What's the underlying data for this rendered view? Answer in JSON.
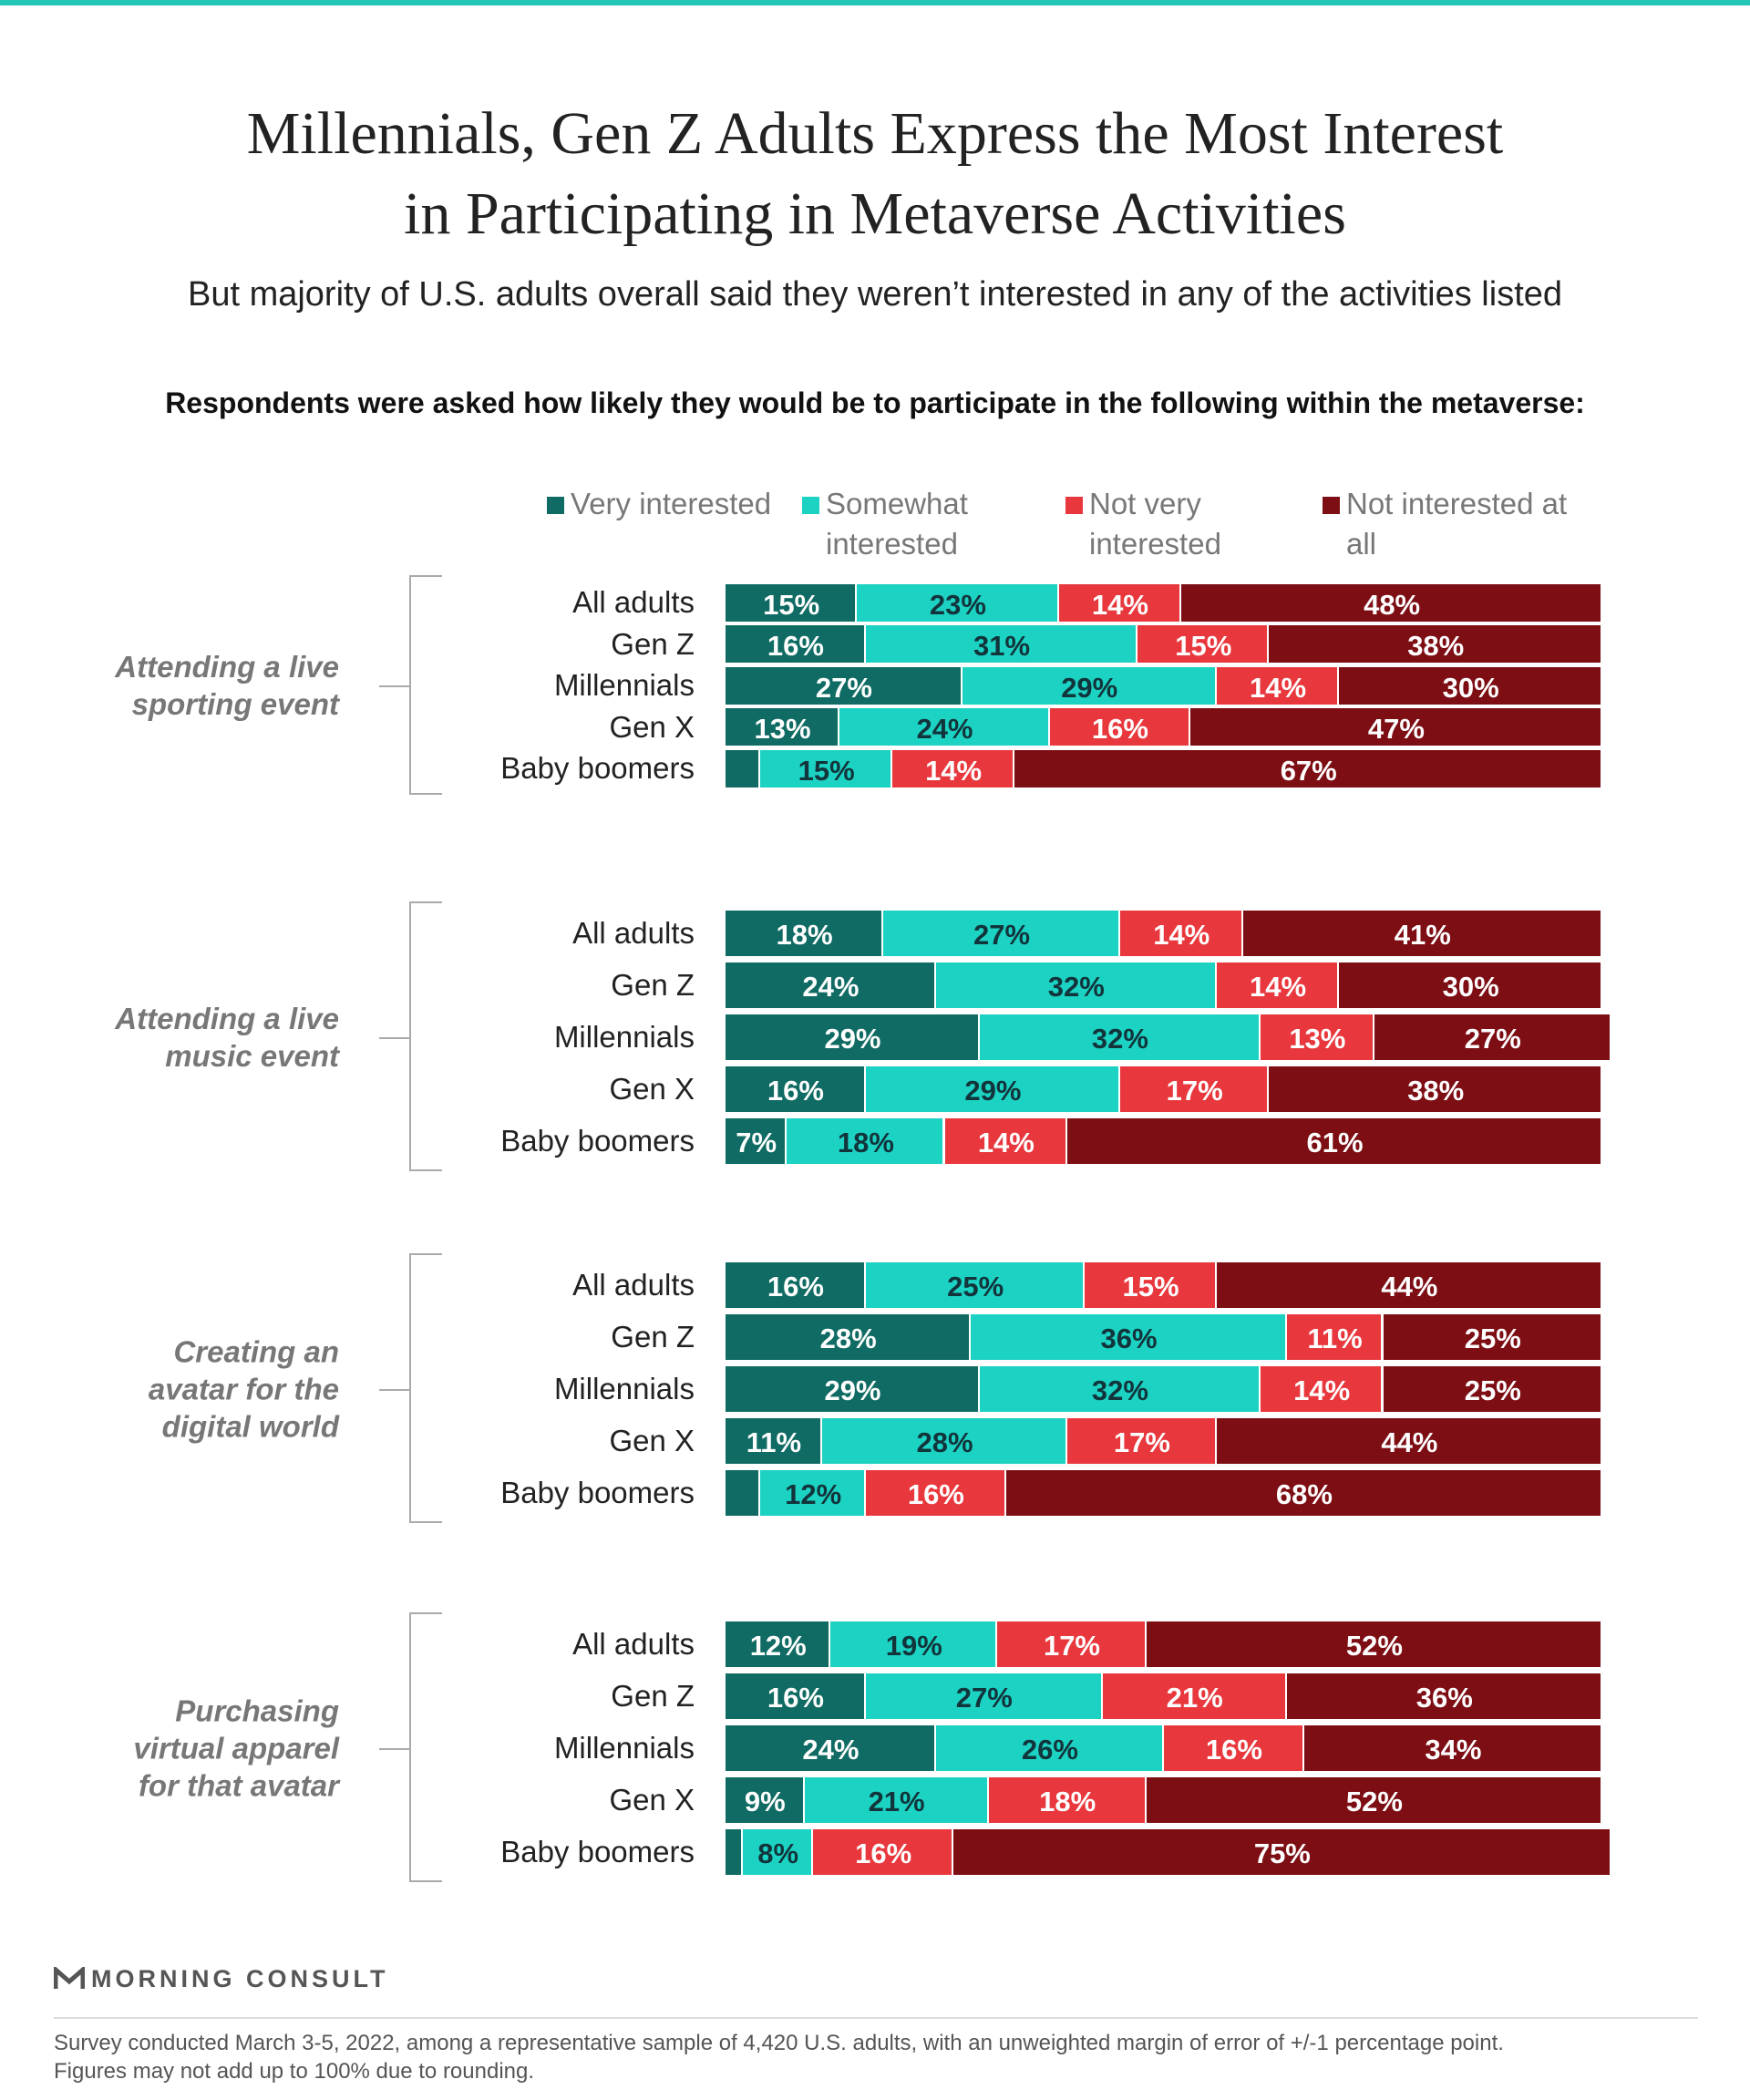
{
  "chart_data": {
    "type": "bar",
    "orientation": "horizontal",
    "stacked": true,
    "title": "Millennials, Gen Z Adults Express the Most Interest in Participating in Metaverse Activities",
    "subtitle": "But majority of U.S. adults overall said they weren’t interested in any of the activities listed",
    "question": "Respondents were asked how likely they would be to participate in the following within the metaverse:",
    "xlim": [
      0,
      100
    ],
    "categories": [
      "All adults",
      "Gen Z",
      "Millennials",
      "Gen X",
      "Baby boomers"
    ],
    "series": [
      {
        "name": "Very interested",
        "color": "#0f6b63"
      },
      {
        "name": "Somewhat interested",
        "color": "#1cd2c3"
      },
      {
        "name": "Not very interested",
        "color": "#e8383d"
      },
      {
        "name": "Not interested at all",
        "color": "#7d0e14"
      }
    ],
    "panels": [
      {
        "label": "Attending a live\nsporting event",
        "series": [
          {
            "values": [
              15,
              16,
              27,
              13,
              4
            ],
            "value_labels": [
              "15%",
              "16%",
              "27%",
              "13%",
              null
            ]
          },
          {
            "values": [
              23,
              31,
              29,
              24,
              15
            ],
            "value_labels": [
              "23%",
              "31%",
              "29%",
              "24%",
              "15%"
            ]
          },
          {
            "values": [
              14,
              15,
              14,
              16,
              14
            ],
            "value_labels": [
              "14%",
              "15%",
              "14%",
              "16%",
              "14%"
            ]
          },
          {
            "values": [
              48,
              38,
              30,
              47,
              67
            ],
            "value_labels": [
              "48%",
              "38%",
              "30%",
              "47%",
              "67%"
            ]
          }
        ]
      },
      {
        "label": "Attending a live\nmusic event",
        "series": [
          {
            "values": [
              18,
              24,
              29,
              16,
              7
            ],
            "value_labels": [
              "18%",
              "24%",
              "29%",
              "16%",
              "7%"
            ]
          },
          {
            "values": [
              27,
              32,
              32,
              29,
              18
            ],
            "value_labels": [
              "27%",
              "32%",
              "32%",
              "29%",
              "18%"
            ]
          },
          {
            "values": [
              14,
              14,
              13,
              17,
              14
            ],
            "value_labels": [
              "14%",
              "14%",
              "13%",
              "17%",
              "14%"
            ]
          },
          {
            "values": [
              41,
              30,
              27,
              38,
              61
            ],
            "value_labels": [
              "41%",
              "30%",
              "27%",
              "38%",
              "61%"
            ]
          }
        ]
      },
      {
        "label": "Creating an\navatar for the\ndigital world",
        "series": [
          {
            "values": [
              16,
              28,
              29,
              11,
              4
            ],
            "value_labels": [
              "16%",
              "28%",
              "29%",
              "11%",
              null
            ]
          },
          {
            "values": [
              25,
              36,
              32,
              28,
              12
            ],
            "value_labels": [
              "25%",
              "36%",
              "32%",
              "28%",
              "12%"
            ]
          },
          {
            "values": [
              15,
              11,
              14,
              17,
              16
            ],
            "value_labels": [
              "15%",
              "11%",
              "14%",
              "17%",
              "16%"
            ]
          },
          {
            "values": [
              44,
              25,
              25,
              44,
              68
            ],
            "value_labels": [
              "44%",
              "25%",
              "25%",
              "44%",
              "68%"
            ]
          }
        ]
      },
      {
        "label": "Purchasing\nvirtual apparel\nfor that avatar",
        "series": [
          {
            "values": [
              12,
              16,
              24,
              9,
              2
            ],
            "value_labels": [
              "12%",
              "16%",
              "24%",
              "9%",
              null
            ]
          },
          {
            "values": [
              19,
              27,
              26,
              21,
              8
            ],
            "value_labels": [
              "19%",
              "27%",
              "26%",
              "21%",
              "8%"
            ]
          },
          {
            "values": [
              17,
              21,
              16,
              18,
              16
            ],
            "value_labels": [
              "17%",
              "21%",
              "16%",
              "18%",
              "16%"
            ]
          },
          {
            "values": [
              52,
              36,
              34,
              52,
              75
            ],
            "value_labels": [
              "52%",
              "36%",
              "34%",
              "52%",
              "75%"
            ]
          }
        ]
      }
    ]
  },
  "footer": {
    "brand": "MORNING CONSULT",
    "note": [
      "Survey conducted March 3-5, 2022, among a representative sample of 4,420 U.S. adults, with an unweighted margin of error of +/-1 percentage point.",
      "Figures may not add up to 100% due to rounding."
    ]
  }
}
